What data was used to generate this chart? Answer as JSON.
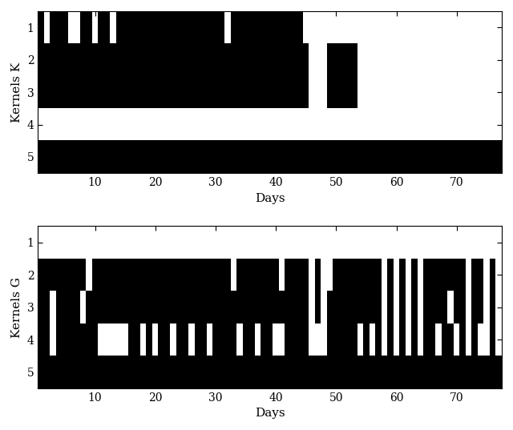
{
  "n_days": 77,
  "n_kernels": 5,
  "xlabel": "Days",
  "ylabel_top": "Kernels K",
  "ylabel_bot": "Kernels G",
  "xticks": [
    10,
    20,
    30,
    40,
    50,
    60,
    70
  ],
  "yticks": [
    1,
    2,
    3,
    4,
    5
  ],
  "figsize": [
    6.4,
    5.37
  ],
  "dpi": 100,
  "panel_K": {
    "row1": [
      1,
      0,
      1,
      1,
      1,
      0,
      0,
      1,
      1,
      0,
      1,
      1,
      0,
      1,
      1,
      1,
      1,
      1,
      1,
      1,
      1,
      1,
      1,
      1,
      1,
      1,
      1,
      1,
      1,
      1,
      1,
      0,
      1,
      1,
      1,
      1,
      1,
      1,
      1,
      1,
      1,
      1,
      1,
      1,
      0,
      0,
      0,
      0,
      0,
      0,
      0,
      0,
      0,
      0,
      0,
      0,
      0,
      0,
      0,
      0,
      0,
      0,
      0,
      0,
      0,
      0,
      0,
      0,
      0,
      0,
      0,
      0,
      0,
      0,
      0,
      0,
      0
    ],
    "row2": [
      1,
      1,
      1,
      1,
      1,
      1,
      1,
      1,
      1,
      1,
      1,
      1,
      1,
      1,
      1,
      1,
      1,
      1,
      1,
      1,
      1,
      1,
      1,
      1,
      1,
      1,
      1,
      1,
      1,
      1,
      1,
      1,
      1,
      1,
      1,
      1,
      1,
      1,
      1,
      1,
      1,
      1,
      1,
      1,
      1,
      0,
      0,
      0,
      1,
      1,
      1,
      1,
      1,
      0,
      0,
      0,
      0,
      0,
      0,
      0,
      0,
      0,
      0,
      0,
      0,
      0,
      0,
      0,
      0,
      0,
      0,
      0,
      0,
      0,
      0,
      0,
      0
    ],
    "row3": [
      1,
      1,
      1,
      1,
      1,
      1,
      1,
      1,
      1,
      1,
      1,
      1,
      1,
      1,
      1,
      1,
      1,
      1,
      1,
      1,
      1,
      1,
      1,
      1,
      1,
      1,
      1,
      1,
      1,
      1,
      1,
      1,
      1,
      1,
      1,
      1,
      1,
      1,
      1,
      1,
      1,
      1,
      1,
      1,
      1,
      0,
      0,
      0,
      1,
      1,
      1,
      1,
      1,
      0,
      0,
      0,
      0,
      0,
      0,
      0,
      0,
      0,
      0,
      0,
      0,
      0,
      0,
      0,
      0,
      0,
      0,
      0,
      0,
      0,
      0,
      0,
      0
    ],
    "row4": [
      0,
      0,
      0,
      0,
      0,
      0,
      0,
      0,
      0,
      0,
      0,
      0,
      0,
      0,
      0,
      0,
      0,
      0,
      0,
      0,
      0,
      0,
      0,
      0,
      0,
      0,
      0,
      0,
      0,
      0,
      0,
      0,
      0,
      0,
      0,
      0,
      0,
      0,
      0,
      0,
      0,
      0,
      0,
      0,
      0,
      0,
      0,
      0,
      0,
      0,
      0,
      0,
      0,
      0,
      0,
      0,
      0,
      0,
      0,
      0,
      0,
      0,
      0,
      0,
      0,
      0,
      0,
      0,
      0,
      0,
      0,
      0,
      0,
      0,
      0,
      0,
      0
    ],
    "row5": [
      1,
      1,
      1,
      1,
      1,
      1,
      1,
      1,
      1,
      1,
      1,
      1,
      1,
      1,
      1,
      1,
      1,
      1,
      1,
      1,
      1,
      1,
      1,
      1,
      1,
      1,
      1,
      1,
      1,
      1,
      1,
      1,
      1,
      1,
      1,
      1,
      1,
      1,
      1,
      1,
      1,
      1,
      1,
      1,
      1,
      1,
      1,
      1,
      1,
      1,
      1,
      1,
      1,
      1,
      1,
      1,
      1,
      1,
      1,
      1,
      1,
      1,
      1,
      1,
      1,
      1,
      1,
      1,
      1,
      1,
      1,
      1,
      1,
      1,
      1,
      1,
      1
    ]
  },
  "panel_G": {
    "row1": [
      0,
      0,
      0,
      0,
      0,
      0,
      0,
      0,
      0,
      0,
      0,
      0,
      0,
      0,
      0,
      0,
      0,
      0,
      0,
      0,
      0,
      0,
      0,
      0,
      0,
      0,
      0,
      0,
      0,
      0,
      0,
      0,
      0,
      0,
      0,
      0,
      0,
      0,
      0,
      0,
      0,
      0,
      0,
      0,
      0,
      0,
      0,
      0,
      0,
      0,
      0,
      0,
      0,
      0,
      0,
      0,
      0,
      0,
      0,
      0,
      0,
      0,
      0,
      0,
      0,
      0,
      0,
      0,
      0,
      0,
      0,
      0,
      0,
      0,
      0,
      0,
      0
    ],
    "row2": [
      1,
      1,
      1,
      1,
      1,
      1,
      1,
      1,
      0,
      1,
      1,
      1,
      1,
      1,
      1,
      1,
      1,
      1,
      1,
      1,
      1,
      1,
      1,
      1,
      1,
      1,
      1,
      1,
      1,
      1,
      1,
      1,
      0,
      1,
      1,
      1,
      1,
      1,
      1,
      1,
      0,
      1,
      1,
      1,
      1,
      0,
      1,
      0,
      0,
      1,
      1,
      1,
      1,
      1,
      1,
      1,
      1,
      0,
      1,
      0,
      1,
      0,
      1,
      0,
      1,
      1,
      1,
      1,
      1,
      1,
      1,
      0,
      1,
      1,
      0,
      1,
      0
    ],
    "row3": [
      1,
      1,
      0,
      1,
      1,
      1,
      1,
      0,
      1,
      1,
      1,
      1,
      1,
      1,
      1,
      1,
      1,
      1,
      1,
      1,
      1,
      1,
      1,
      1,
      1,
      1,
      1,
      1,
      1,
      1,
      1,
      1,
      1,
      1,
      1,
      1,
      1,
      1,
      1,
      1,
      1,
      1,
      1,
      1,
      1,
      0,
      1,
      0,
      1,
      1,
      1,
      1,
      1,
      1,
      1,
      1,
      1,
      0,
      1,
      0,
      1,
      0,
      1,
      0,
      1,
      1,
      1,
      1,
      0,
      1,
      1,
      0,
      1,
      1,
      0,
      1,
      0
    ],
    "row4": [
      1,
      1,
      0,
      1,
      1,
      1,
      1,
      1,
      1,
      1,
      0,
      0,
      0,
      0,
      0,
      1,
      1,
      0,
      1,
      0,
      1,
      1,
      0,
      1,
      1,
      0,
      1,
      1,
      0,
      1,
      1,
      1,
      1,
      0,
      1,
      1,
      0,
      1,
      1,
      0,
      0,
      1,
      1,
      1,
      1,
      0,
      0,
      0,
      1,
      1,
      1,
      1,
      1,
      0,
      1,
      0,
      1,
      0,
      1,
      0,
      1,
      0,
      1,
      0,
      1,
      1,
      0,
      1,
      1,
      0,
      1,
      0,
      1,
      0,
      0,
      1,
      0
    ],
    "row5": [
      1,
      1,
      1,
      1,
      1,
      1,
      1,
      1,
      1,
      1,
      1,
      1,
      1,
      1,
      1,
      1,
      1,
      1,
      1,
      1,
      1,
      1,
      1,
      1,
      1,
      1,
      1,
      1,
      1,
      1,
      1,
      1,
      1,
      1,
      1,
      1,
      1,
      1,
      1,
      1,
      1,
      1,
      1,
      1,
      1,
      1,
      1,
      1,
      1,
      1,
      1,
      1,
      1,
      1,
      1,
      1,
      1,
      1,
      1,
      1,
      1,
      1,
      1,
      1,
      1,
      1,
      1,
      1,
      1,
      1,
      1,
      1,
      1,
      1,
      1,
      1,
      1
    ]
  }
}
